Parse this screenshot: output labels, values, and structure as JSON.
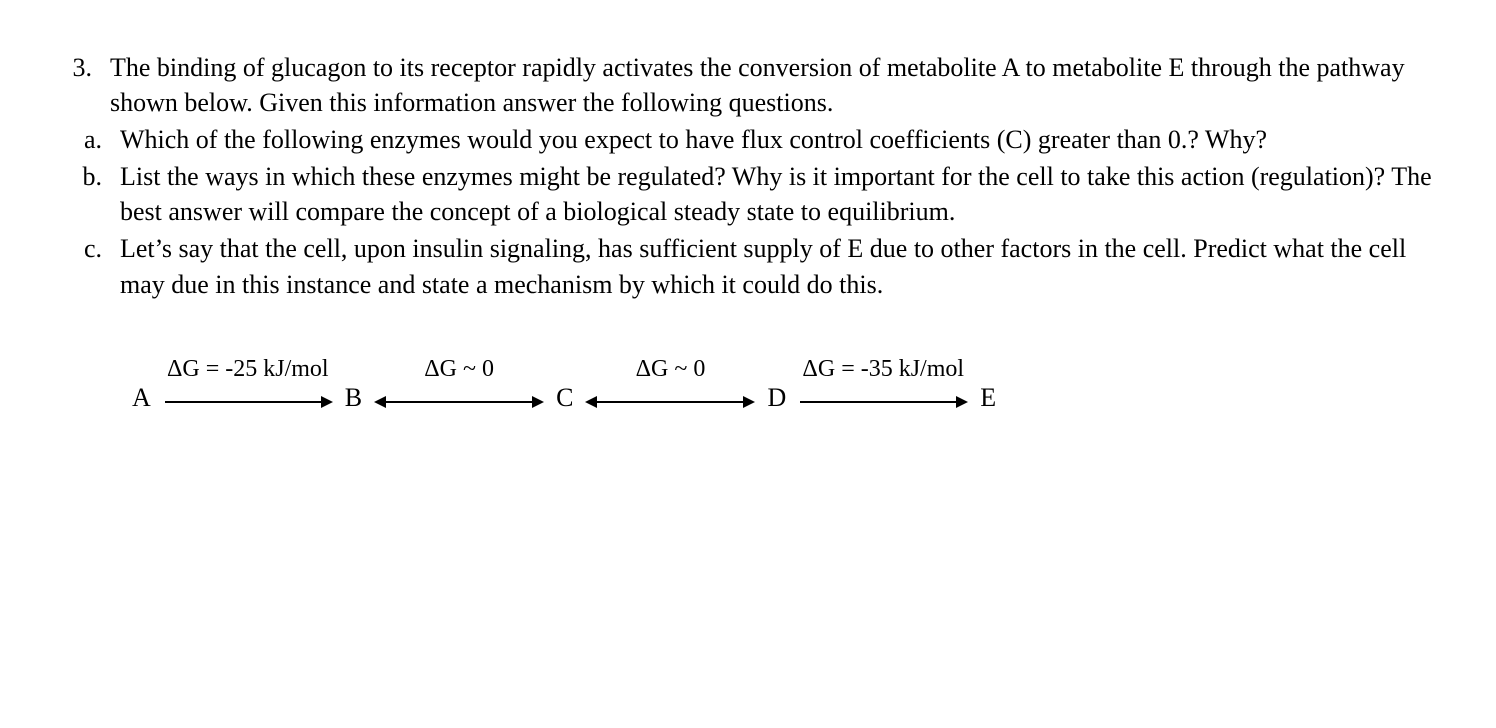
{
  "question": {
    "number": "3.",
    "stem": "The binding of glucagon to its receptor rapidly activates the conversion of metabolite A to metabolite E through the pathway shown below.  Given this information answer the following questions.",
    "parts": [
      {
        "letter": "a.",
        "text": "Which of the following enzymes would you expect to have flux control coefficients (C) greater than 0.? Why?"
      },
      {
        "letter": "b.",
        "text": "List the ways in which these enzymes might be regulated?  Why is it important for the cell to take this action (regulation)?  The best answer will compare the concept of a biological steady state to equilibrium."
      },
      {
        "letter": "c.",
        "text": "Let’s say that the cell, upon insulin signaling, has sufficient supply of E due to other factors in the cell.  Predict what the cell may due in this instance and state a mechanism by which it could do this."
      }
    ]
  },
  "pathway": {
    "type": "flowchart",
    "background_color": "#ffffff",
    "text_color": "#000000",
    "arrow_color": "#000000",
    "arrow_stroke_width": 2,
    "node_fontsize": 26,
    "label_fontsize": 24,
    "arrow_length": 170,
    "nodes": [
      {
        "id": "A",
        "label": "A"
      },
      {
        "id": "B",
        "label": "B"
      },
      {
        "id": "C",
        "label": "C"
      },
      {
        "id": "D",
        "label": "D"
      },
      {
        "id": "E",
        "label": "E"
      }
    ],
    "edges": [
      {
        "from": "A",
        "to": "B",
        "dg_label": "ΔG = -25 kJ/mol",
        "bidirectional": false
      },
      {
        "from": "B",
        "to": "C",
        "dg_label": "ΔG ~ 0",
        "bidirectional": true
      },
      {
        "from": "C",
        "to": "D",
        "dg_label": "ΔG ~ 0",
        "bidirectional": true
      },
      {
        "from": "D",
        "to": "E",
        "dg_label": "ΔG = -35 kJ/mol",
        "bidirectional": false
      }
    ]
  }
}
